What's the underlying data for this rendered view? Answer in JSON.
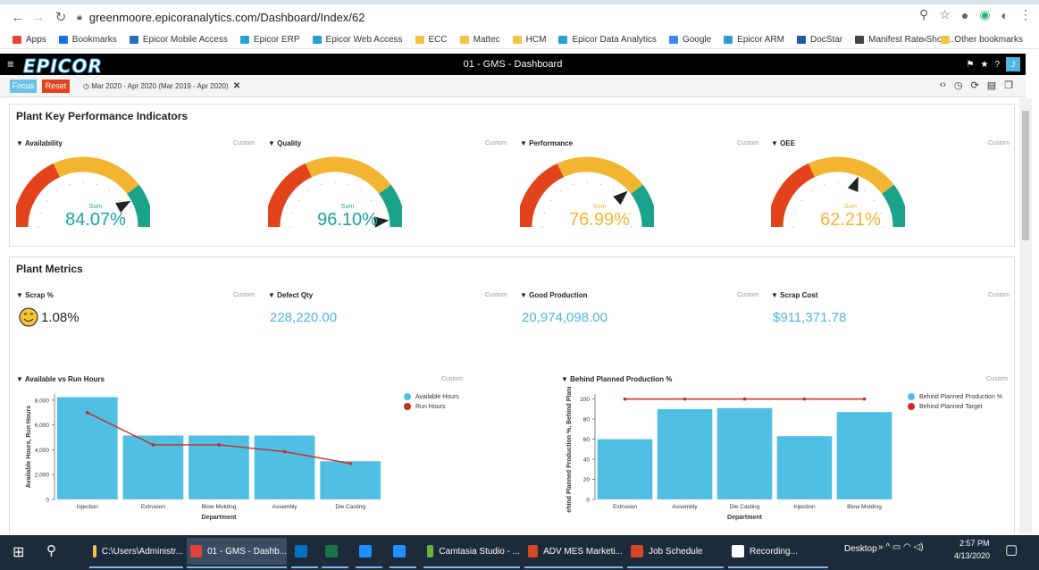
{
  "browser": {
    "url": "greenmoore.epicoranalytics.com/Dashboard/Index/62",
    "bookmarks": [
      {
        "label": "Apps",
        "color": "#ea4335"
      },
      {
        "label": "Bookmarks",
        "color": "#1a73e8"
      },
      {
        "label": "Epicor Mobile Access",
        "color": "#2a6ebb"
      },
      {
        "label": "Epicor ERP",
        "color": "#2a9fd6"
      },
      {
        "label": "Epicor Web Access",
        "color": "#2a9fd6"
      },
      {
        "label": "ECC",
        "color": "#f6c344"
      },
      {
        "label": "Mattec",
        "color": "#f6c344"
      },
      {
        "label": "HCM",
        "color": "#f6c344"
      },
      {
        "label": "Epicor Data Analytics",
        "color": "#2a9fd6"
      },
      {
        "label": "Google",
        "color": "#4285f4"
      },
      {
        "label": "Epicor ARM",
        "color": "#2a9fd6"
      },
      {
        "label": "DocStar",
        "color": "#1e5aa8"
      },
      {
        "label": "Manifest Rate Shop...",
        "color": "#444444"
      }
    ],
    "more": "»",
    "other_bookmarks": "Other bookmarks"
  },
  "app": {
    "logo": "EPICOR",
    "title": "01 - GMS - Dashboard",
    "avatar": "J"
  },
  "filters": {
    "focus": "Focus",
    "reset": "Reset",
    "date_range": "Mar 2020 - Apr 2020 (Mar 2019 - Apr 2020)"
  },
  "kpi": {
    "title": "Plant Key Performance Indicators",
    "gauges": [
      {
        "label": "Availability",
        "custom": "Custom",
        "sum": "Sum",
        "value_text": "84.07%",
        "value": 84.07,
        "color": "#1aa3a0"
      },
      {
        "label": "Quality",
        "custom": "Custom",
        "sum": "Sum",
        "value_text": "96.10%",
        "value": 96.1,
        "color": "#1aa3a0"
      },
      {
        "label": "Performance",
        "custom": "Custom",
        "sum": "Sum",
        "value_text": "76.99%",
        "value": 76.99,
        "color": "#f3b52f"
      },
      {
        "label": "OEE",
        "custom": "Custom",
        "sum": "Sum",
        "value_text": "62.21%",
        "value": 62.21,
        "color": "#f3b52f"
      }
    ]
  },
  "metrics": {
    "title": "Plant Metrics",
    "cards": [
      {
        "label": "Scrap %",
        "custom": "Custom",
        "value": "1.08%",
        "icon": "smiley-icon"
      },
      {
        "label": "Defect Qty",
        "custom": "Custom",
        "value": "228,220.00"
      },
      {
        "label": "Good Production",
        "custom": "Custom",
        "value": "20,974,098.00"
      },
      {
        "label": "Scrap Cost",
        "custom": "Custom",
        "value": "$911,371.78"
      }
    ]
  },
  "chart_data": [
    {
      "type": "bar",
      "title": "Available vs Run Hours",
      "custom": "Custom",
      "xlabel": "Department",
      "ylabel": "Available Hours, Run Hours",
      "categories": [
        "Injection",
        "Extrusion",
        "Blow Molding",
        "Assembly",
        "Die Casting"
      ],
      "ylim": [
        0,
        8500
      ],
      "yticks": [
        0,
        2000,
        4000,
        6000,
        8000
      ],
      "ytick_labels": [
        "0",
        "2,000",
        "4,000",
        "6,000",
        "8,000"
      ],
      "series": [
        {
          "name": "Available Hours",
          "kind": "bar",
          "color": "#4fc0e3",
          "values": [
            8250,
            5150,
            5150,
            5150,
            3080
          ]
        },
        {
          "name": "Run Hours",
          "kind": "line",
          "color": "#cc2a1c",
          "values": [
            7000,
            4400,
            4400,
            3850,
            2900
          ]
        }
      ]
    },
    {
      "type": "bar",
      "title": "Behind Planned Production %",
      "custom": "Custom",
      "xlabel": "Department",
      "ylabel": "ehind Planned Production %, Behind Planne",
      "categories": [
        "Extrusion",
        "Assembly",
        "Die Casting",
        "Injection",
        "Blow Molding"
      ],
      "ylim": [
        0,
        105
      ],
      "yticks": [
        0,
        20,
        40,
        60,
        80,
        100
      ],
      "ytick_labels": [
        "0",
        "20",
        "40",
        "60",
        "80",
        "100"
      ],
      "series": [
        {
          "name": "Behind Planned Production %",
          "kind": "bar",
          "color": "#4fc0e3",
          "values": [
            60,
            90,
            91,
            63,
            87
          ]
        },
        {
          "name": "Behind Planned Target",
          "kind": "line",
          "color": "#cc2a1c",
          "values": [
            100,
            100,
            100,
            100,
            100
          ]
        }
      ]
    }
  ],
  "taskbar": {
    "items": [
      {
        "label": "C:\\Users\\Administr...",
        "color": "#f6c344"
      },
      {
        "label": "01 - GMS - Dashb...",
        "color": "#db4437",
        "active": true
      },
      {
        "label": "",
        "color": "#0072c6"
      },
      {
        "label": "",
        "color": "#1e7145"
      },
      {
        "label": "",
        "color": "#1e90ff"
      },
      {
        "label": "",
        "color": "#1e90ff"
      },
      {
        "label": "Camtasia Studio - ...",
        "color": "#6bb33c"
      },
      {
        "label": "ADV MES Marketi...",
        "color": "#d24726"
      },
      {
        "label": "Job Schedule",
        "color": "#d24726"
      },
      {
        "label": "Recording...",
        "color": "#ffffff"
      }
    ],
    "desktop": "Desktop",
    "time": "2:57 PM",
    "date": "4/13/2020"
  }
}
